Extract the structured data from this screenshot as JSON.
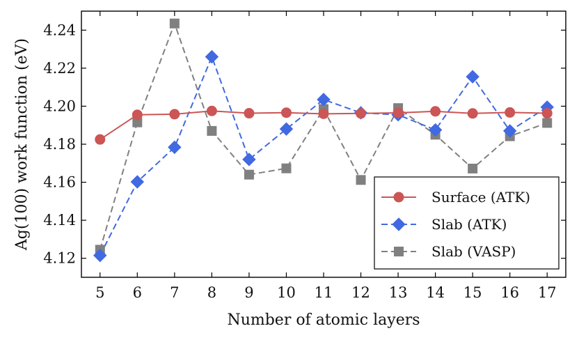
{
  "chart_data": {
    "type": "line",
    "title": "",
    "xlabel": "Number of atomic layers",
    "ylabel": "Ag(100) work function (eV)",
    "x": [
      5,
      6,
      7,
      8,
      9,
      10,
      11,
      12,
      13,
      14,
      15,
      16,
      17
    ],
    "xlim": [
      4.5,
      17.5
    ],
    "ylim": [
      4.11,
      4.25
    ],
    "x_ticks": [
      5,
      6,
      7,
      8,
      9,
      10,
      11,
      12,
      13,
      14,
      15,
      16,
      17
    ],
    "y_ticks": [
      4.12,
      4.14,
      4.16,
      4.18,
      4.2,
      4.22,
      4.24
    ],
    "y_tick_labels": [
      "4.12",
      "4.14",
      "4.16",
      "4.18",
      "4.20",
      "4.22",
      "4.24"
    ],
    "grid": false,
    "legend_position": "bottom-right",
    "series": [
      {
        "name": "Surface (ATK)",
        "color": "#cc5555",
        "linestyle": "solid",
        "marker": "circle",
        "values": [
          4.1825,
          4.1955,
          4.1958,
          4.1975,
          4.1963,
          4.1966,
          4.196,
          4.1962,
          4.1965,
          4.1973,
          4.1962,
          4.1967,
          4.1963
        ]
      },
      {
        "name": "Slab (ATK)",
        "color": "#4169e1",
        "linestyle": "dashed",
        "marker": "diamond",
        "values": [
          4.1215,
          4.1602,
          4.1784,
          4.226,
          4.172,
          4.188,
          4.2035,
          4.1965,
          4.1955,
          4.1875,
          4.2155,
          4.187,
          4.1995
        ]
      },
      {
        "name": "Slab (VASP)",
        "color": "#808080",
        "linestyle": "dashed",
        "marker": "square",
        "values": [
          4.1245,
          4.1915,
          4.2435,
          4.187,
          4.164,
          4.1673,
          4.1985,
          4.1612,
          4.199,
          4.185,
          4.1672,
          4.1842,
          4.1912
        ]
      }
    ]
  }
}
